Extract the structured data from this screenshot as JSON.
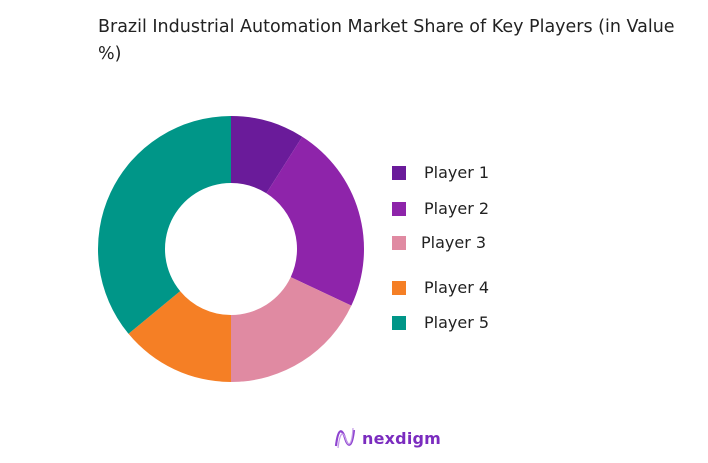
{
  "chart_data": {
    "type": "pie",
    "donut": true,
    "title": "Brazil Industrial Automation Market Share of Key Players (in Value %)",
    "categories": [
      "Player 1",
      "Player 2",
      "Player 3",
      "Player 4",
      "Player 5"
    ],
    "values": [
      9,
      23,
      18,
      14,
      36
    ],
    "colors": [
      "#6a1b9a",
      "#8e24aa",
      "#e08aa2",
      "#f57f25",
      "#009688"
    ],
    "legend_position": "right"
  },
  "brand": {
    "name": "nexdigm"
  }
}
